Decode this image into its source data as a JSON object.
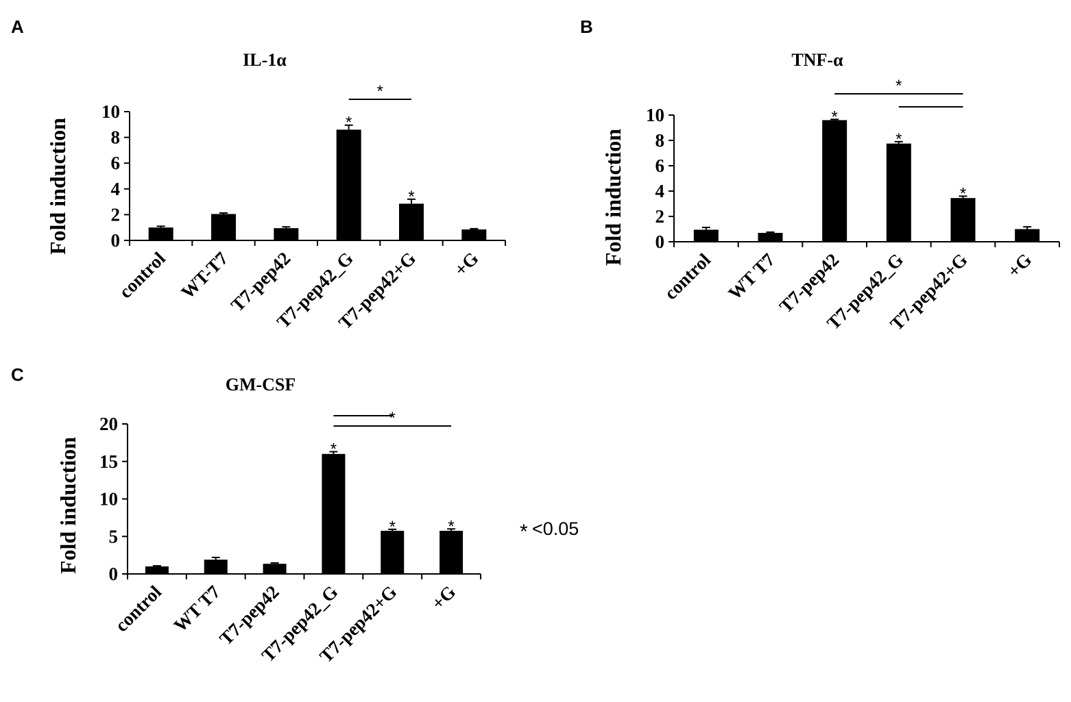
{
  "chart_data": [
    {
      "panel": "A",
      "type": "bar",
      "title": "IL-1α",
      "ylabel": "Fold induction",
      "xlabel": "",
      "ylim": [
        0,
        10
      ],
      "yticks": [
        0,
        2,
        4,
        6,
        8,
        10
      ],
      "categories": [
        "control",
        "WT-T7",
        "T7-pep42",
        "T7-pep42_G",
        "T7-pep42+G",
        "+G"
      ],
      "values": [
        1.0,
        2.05,
        0.95,
        8.6,
        2.85,
        0.85
      ],
      "errors": [
        0.1,
        0.08,
        0.1,
        0.35,
        0.35,
        0.06
      ],
      "bar_color": "#000000",
      "significant": [
        false,
        false,
        false,
        true,
        true,
        false
      ],
      "significance_brackets": [
        {
          "from": "T7-pep42_G",
          "to": "T7-pep42+G",
          "label": "*"
        }
      ],
      "grid": false
    },
    {
      "panel": "B",
      "type": "bar",
      "title": "TNF-α",
      "ylabel": "Fold induction",
      "xlabel": "",
      "ylim": [
        0,
        10
      ],
      "yticks": [
        0,
        2,
        4,
        6,
        8,
        10
      ],
      "categories": [
        "control",
        "WT T7",
        "T7-pep42",
        "T7-pep42_G",
        "T7-pep42+G",
        "+G"
      ],
      "values": [
        0.95,
        0.7,
        9.6,
        7.75,
        3.45,
        1.0
      ],
      "errors": [
        0.18,
        0.06,
        0.06,
        0.15,
        0.15,
        0.18
      ],
      "bar_color": "#000000",
      "significant": [
        false,
        false,
        true,
        true,
        true,
        false
      ],
      "significance_brackets": [
        {
          "from": "T7-pep42",
          "to": "T7-pep42+G",
          "label": "*"
        },
        {
          "from": "T7-pep42_G",
          "to": "T7-pep42+G",
          "label": ""
        }
      ],
      "grid": false
    },
    {
      "panel": "C",
      "type": "bar",
      "title": "GM-CSF",
      "ylabel": "Fold induction",
      "xlabel": "",
      "ylim": [
        0,
        20
      ],
      "yticks": [
        0,
        5,
        10,
        15,
        20
      ],
      "categories": [
        "control",
        "WT T7",
        "T7-pep42",
        "T7-pep42_G",
        "T7-pep42+G",
        "+G"
      ],
      "values": [
        1.0,
        1.9,
        1.35,
        16.0,
        5.75,
        5.75
      ],
      "errors": [
        0.08,
        0.3,
        0.12,
        0.3,
        0.2,
        0.25
      ],
      "bar_color": "#000000",
      "significant": [
        false,
        false,
        false,
        true,
        true,
        true
      ],
      "significance_brackets": [
        {
          "from": "T7-pep42_G",
          "to": "T7-pep42+G",
          "label": ""
        },
        {
          "from": "T7-pep42_G",
          "to": "+G",
          "label": "*"
        }
      ],
      "grid": false
    }
  ],
  "note": {
    "star": "*",
    "text": "<0.05"
  }
}
